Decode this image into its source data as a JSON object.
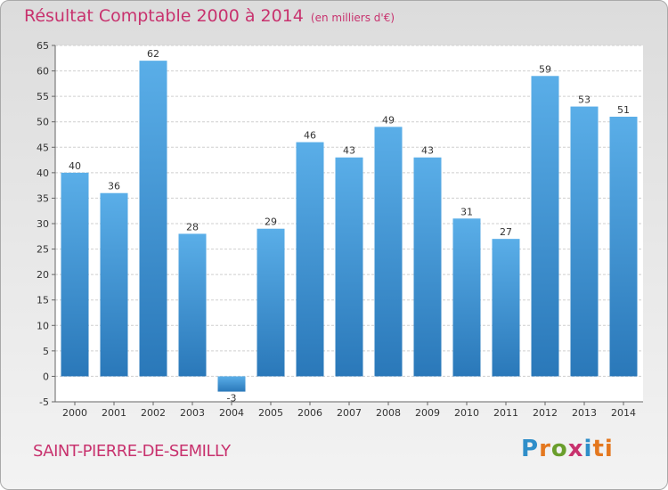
{
  "header": {
    "title": "Résultat Comptable 2000 à 2014",
    "subtitle": "(en milliers d'€)"
  },
  "footer": {
    "commune": "SAINT-PIERRE-DE-SEMILLY",
    "logo": [
      "P",
      "r",
      "o",
      "x",
      "i",
      "ti"
    ]
  },
  "colors": {
    "bar_top": "#5aaee8",
    "bar_bottom": "#2a78b9",
    "title": "#c8326e"
  },
  "chart_data": {
    "type": "bar",
    "title": "Résultat Comptable 2000 à 2014",
    "subtitle": "(en milliers d'€)",
    "categories": [
      "2000",
      "2001",
      "2002",
      "2003",
      "2004",
      "2005",
      "2006",
      "2007",
      "2008",
      "2009",
      "2010",
      "2011",
      "2012",
      "2013",
      "2014"
    ],
    "values": [
      40,
      36,
      62,
      28,
      -3,
      29,
      46,
      43,
      49,
      43,
      31,
      27,
      59,
      53,
      51
    ],
    "ylim": [
      -5,
      65
    ],
    "yticks": [
      -5,
      0,
      5,
      10,
      15,
      20,
      25,
      30,
      35,
      40,
      45,
      50,
      55,
      60,
      65
    ],
    "grid": true
  }
}
